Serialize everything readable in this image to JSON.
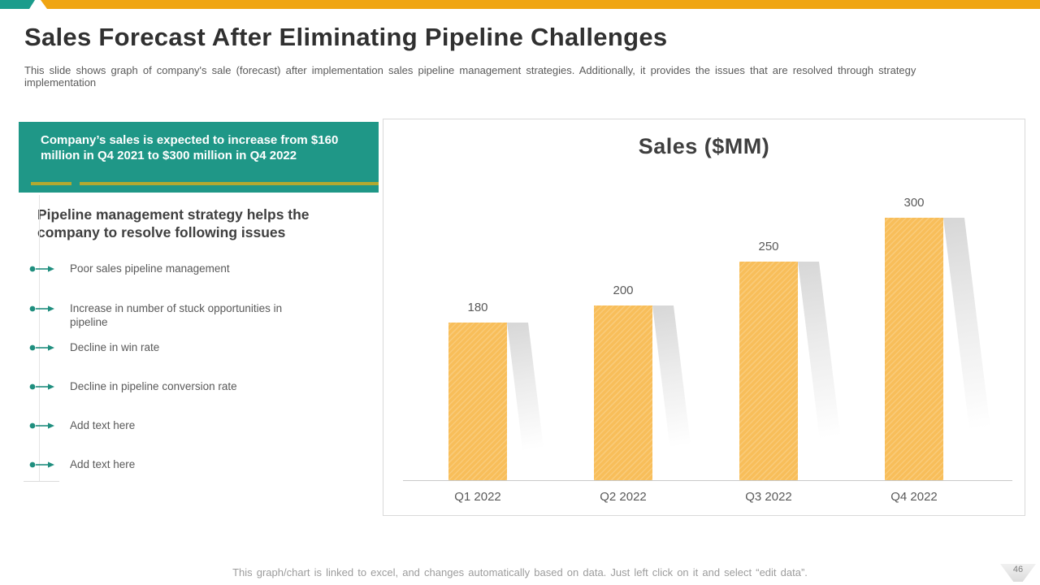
{
  "slide": {
    "title": "Sales Forecast After Eliminating Pipeline Challenges",
    "subtitle": "This slide shows graph of company's sale (forecast) after implementation sales pipeline management strategies. Additionally, it provides the issues that are resolved through strategy implementation",
    "footer_note": "This graph/chart is linked to excel, and changes automatically based on data. Just left click on it and select “edit data”.",
    "page_number": "46"
  },
  "callout": {
    "text": "Company’s sales is expected to increase from $160 million in Q4 2021 to $300 million in Q4 2022"
  },
  "issues": {
    "heading": "Pipeline management strategy helps the company to resolve following issues",
    "bullet_icon": "dot-arrow-icon",
    "items": [
      "Poor sales pipeline management",
      "Increase in number of stuck opportunities in pipeline",
      "Decline in win rate",
      "Decline in pipeline conversion rate",
      "Add text here",
      "Add text here"
    ]
  },
  "chart_data": {
    "type": "bar",
    "title": "Sales ($MM)",
    "categories": [
      "Q1 2022",
      "Q2 2022",
      "Q3 2022",
      "Q4 2022"
    ],
    "values": [
      180,
      200,
      250,
      300
    ],
    "xlabel": "",
    "ylabel": "",
    "ylim": [
      0,
      330
    ],
    "grid": false,
    "legend": false,
    "data_labels": true,
    "bar_color": "#F8BE5A"
  },
  "colors": {
    "accent_teal": "#1F9787",
    "accent_yellow": "#F0A512",
    "bar_yellow": "#F8BE5A",
    "underline_olive": "#B3A930",
    "text_dark": "#303030",
    "text_gray": "#595959"
  }
}
